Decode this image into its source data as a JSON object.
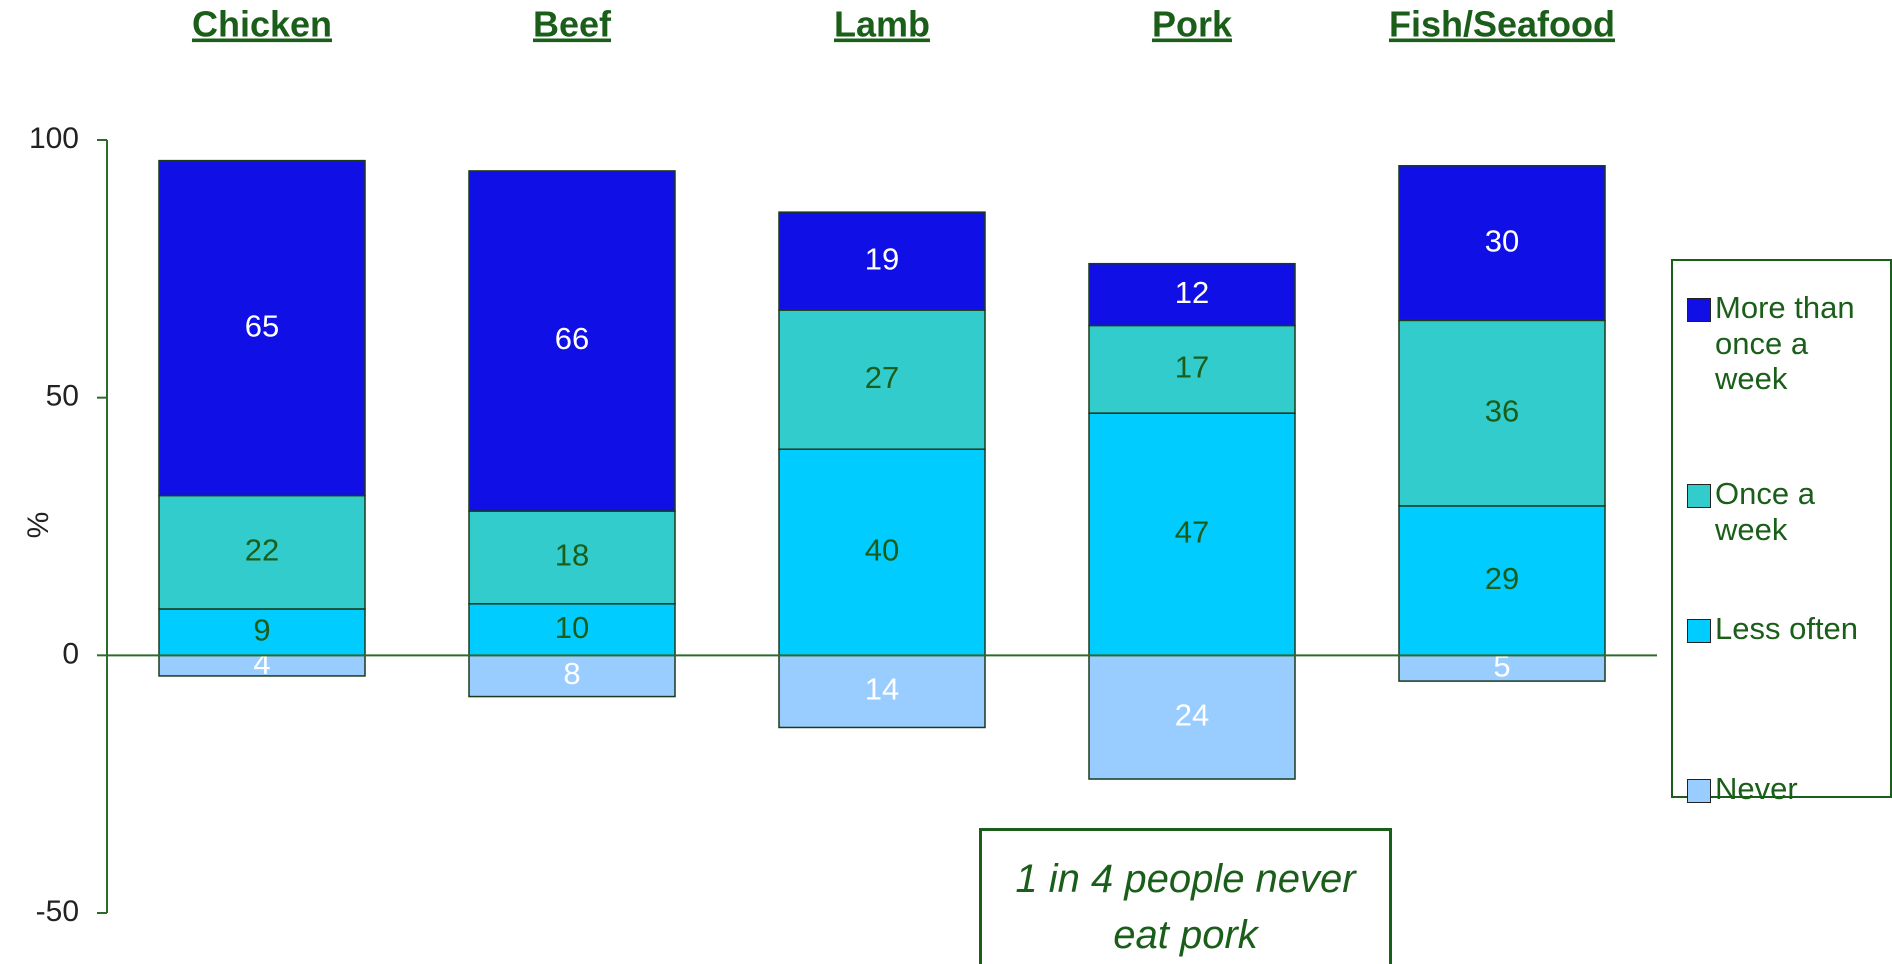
{
  "chart_data": {
    "type": "stacked_bar",
    "categories": [
      "Chicken",
      "Beef",
      "Lamb",
      "Pork",
      "Fish/Seafood"
    ],
    "series": [
      {
        "name": "More than once a week",
        "color": "#1010e6",
        "values": [
          65,
          66,
          19,
          12,
          30
        ]
      },
      {
        "name": "Once a week",
        "color": "#33cccc",
        "values": [
          22,
          18,
          27,
          17,
          36
        ]
      },
      {
        "name": "Less often",
        "color": "#00ccff",
        "values": [
          9,
          10,
          40,
          47,
          29
        ]
      },
      {
        "name": "Never",
        "color": "#99ccff",
        "values": [
          -4,
          -8,
          -14,
          -24,
          -5
        ],
        "value_labels": [
          "4",
          "8",
          "14",
          "24",
          "5"
        ]
      }
    ],
    "ylabel": "%",
    "ylim": [
      -50,
      100
    ],
    "yticks": [
      100,
      50,
      0,
      -50
    ],
    "grid": false,
    "legend": "right",
    "annotation": "1 in 4 people never eat pork"
  }
}
